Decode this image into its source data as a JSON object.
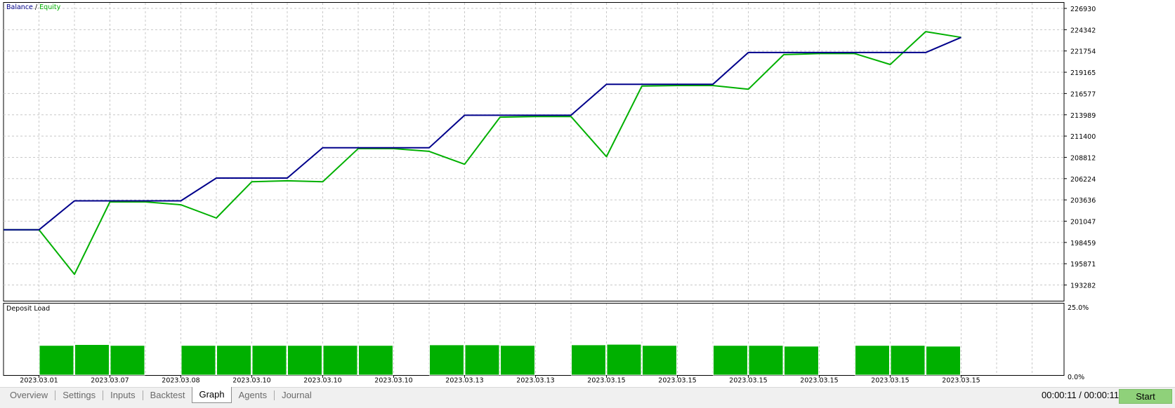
{
  "balance_chart": {
    "legend_balance": "Balance",
    "legend_separator": "/",
    "legend_equity": "Equity",
    "colors": {
      "balance": "#00008b",
      "equity": "#00b000",
      "grid": "#c8c8c8",
      "border": "#000000"
    },
    "y_ticks": [
      226930,
      224342,
      221754,
      219165,
      216577,
      213989,
      211400,
      208812,
      206224,
      203636,
      201047,
      198459,
      195871,
      193282
    ]
  },
  "deposit_chart": {
    "title": "Deposit Load",
    "y_top_label": "25.0%",
    "y_bottom_label": "0.0%",
    "bar_color": "#00b000"
  },
  "x_labels": [
    "2023.03.01",
    "2023.03.07",
    "2023.03.08",
    "2023.03.10",
    "2023.03.10",
    "2023.03.10",
    "2023.03.13",
    "2023.03.13",
    "2023.03.15",
    "2023.03.15",
    "2023.03.15",
    "2023.03.15",
    "2023.03.15",
    "2023.03.15"
  ],
  "chart_data": [
    {
      "type": "line",
      "title": "",
      "xlabel": "",
      "ylabel": "",
      "ylim": [
        193282,
        226930
      ],
      "grid": true,
      "legend": "top-left",
      "x": [
        0,
        1,
        2,
        3,
        4,
        5,
        6,
        7,
        8,
        9,
        10,
        11,
        12,
        13,
        14,
        15,
        16,
        17,
        18,
        19,
        20,
        21,
        22,
        23,
        24,
        25,
        26,
        27
      ],
      "series": [
        {
          "name": "Balance",
          "values": [
            200000,
            200000,
            203520,
            203520,
            203520,
            203520,
            206290,
            206290,
            206290,
            209980,
            209980,
            209980,
            209980,
            213930,
            213930,
            213930,
            213930,
            217690,
            217690,
            217690,
            217690,
            221570,
            221570,
            221570,
            221570,
            221570,
            221570,
            223410
          ]
        },
        {
          "name": "Equity",
          "values": [
            200000,
            200000,
            194580,
            203390,
            203390,
            203040,
            201430,
            205840,
            205960,
            205840,
            209870,
            209870,
            209540,
            207970,
            213700,
            213780,
            213780,
            208890,
            217490,
            217550,
            217550,
            217100,
            221310,
            221440,
            221440,
            220110,
            224110,
            223410
          ]
        }
      ]
    },
    {
      "type": "bar",
      "title": "Deposit Load",
      "xlabel": "",
      "ylabel": "",
      "ylim": [
        0,
        25
      ],
      "categories": [
        "1",
        "2",
        "3",
        "4",
        "5",
        "6",
        "7",
        "8",
        "9",
        "10",
        "11",
        "12",
        "13",
        "14",
        "15",
        "16",
        "17",
        "18",
        "19",
        "20",
        "21",
        "22",
        "23",
        "24",
        "25",
        "26",
        "27"
      ],
      "values": [
        10.8,
        11.1,
        10.8,
        null,
        10.8,
        10.8,
        10.8,
        10.8,
        10.8,
        10.8,
        null,
        11.0,
        11.0,
        10.8,
        null,
        11.0,
        11.2,
        10.8,
        null,
        10.8,
        10.8,
        10.5,
        null,
        10.8,
        10.8,
        10.5,
        null
      ]
    }
  ],
  "tabs": [
    "Overview",
    "Settings",
    "Inputs",
    "Backtest",
    "Graph",
    "Agents",
    "Journal"
  ],
  "active_tab": "Graph",
  "timer": "00:00:11 / 00:00:11",
  "start_label": "Start"
}
